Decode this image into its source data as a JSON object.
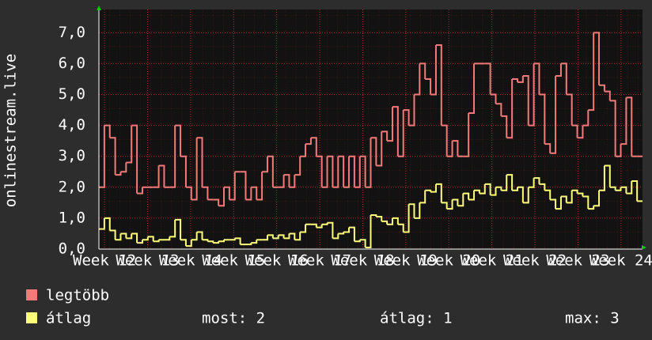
{
  "chart_data": {
    "type": "line",
    "y_label": "onlinestream.live",
    "xlim": [
      11.87,
      24.5
    ],
    "xticks": [
      {
        "value": 12,
        "label": "Week 12"
      },
      {
        "value": 13,
        "label": "Week 13"
      },
      {
        "value": 14,
        "label": "Week 14"
      },
      {
        "value": 15,
        "label": "Week 15"
      },
      {
        "value": 16,
        "label": "Week 16"
      },
      {
        "value": 17,
        "label": "Week 17"
      },
      {
        "value": 18,
        "label": "Week 18"
      },
      {
        "value": 19,
        "label": "Week 19"
      },
      {
        "value": 20,
        "label": "Week 20"
      },
      {
        "value": 21,
        "label": "Week 21"
      },
      {
        "value": 22,
        "label": "Week 22"
      },
      {
        "value": 23,
        "label": "Week 23"
      },
      {
        "value": 24,
        "label": "Week 24"
      }
    ],
    "ylim": [
      0,
      7.75
    ],
    "yticks": [
      {
        "value": 0,
        "label": "0,0"
      },
      {
        "value": 1,
        "label": "1,0"
      },
      {
        "value": 2,
        "label": "2,0"
      },
      {
        "value": 3,
        "label": "3,0"
      },
      {
        "value": 4,
        "label": "4,0"
      },
      {
        "value": 5,
        "label": "5,0"
      },
      {
        "value": 6,
        "label": "6,0"
      },
      {
        "value": 7,
        "label": "7,0"
      }
    ],
    "grid": true,
    "series": [
      {
        "name": "legtöbb",
        "color": "#f47a7a",
        "values": [
          2.0,
          4.0,
          3.6,
          2.4,
          2.5,
          2.8,
          4.0,
          1.8,
          2.0,
          2.0,
          2.0,
          2.7,
          2.0,
          2.0,
          4.0,
          3.0,
          2.0,
          1.6,
          3.6,
          2.0,
          1.6,
          1.6,
          1.4,
          2.0,
          1.6,
          2.5,
          2.5,
          1.6,
          2.0,
          1.6,
          2.5,
          3.0,
          2.0,
          2.0,
          2.4,
          2.0,
          2.4,
          3.0,
          3.4,
          3.6,
          3.0,
          2.0,
          3.0,
          2.0,
          3.0,
          2.0,
          3.0,
          2.0,
          3.0,
          2.0,
          3.6,
          2.7,
          3.8,
          3.5,
          4.6,
          3.0,
          4.5,
          4.0,
          5.0,
          6.0,
          5.5,
          5.0,
          6.6,
          4.0,
          3.0,
          3.5,
          3.0,
          3.0,
          4.4,
          6.0,
          6.0,
          6.0,
          5.0,
          4.7,
          4.3,
          3.6,
          5.5,
          5.4,
          5.6,
          4.0,
          6.0,
          5.0,
          3.4,
          3.1,
          5.6,
          6.0,
          5.0,
          4.0,
          3.6,
          4.0,
          4.5,
          7.0,
          5.3,
          5.1,
          4.8,
          3.0,
          3.4,
          4.9,
          3.0,
          3.0
        ]
      },
      {
        "name": "átlag",
        "color": "#ffff7a",
        "values": [
          0.65,
          1.0,
          0.6,
          0.3,
          0.5,
          0.35,
          0.5,
          0.2,
          0.3,
          0.4,
          0.25,
          0.3,
          0.3,
          0.4,
          0.95,
          0.3,
          0.1,
          0.3,
          0.55,
          0.3,
          0.25,
          0.2,
          0.25,
          0.3,
          0.3,
          0.35,
          0.15,
          0.15,
          0.2,
          0.3,
          0.3,
          0.45,
          0.35,
          0.45,
          0.35,
          0.5,
          0.3,
          0.55,
          0.8,
          0.8,
          0.7,
          0.8,
          0.85,
          0.35,
          0.5,
          0.55,
          0.7,
          0.25,
          0.3,
          0.05,
          1.1,
          1.05,
          0.9,
          0.8,
          1.0,
          0.8,
          0.55,
          1.45,
          1.0,
          1.5,
          1.9,
          1.85,
          2.1,
          1.5,
          1.3,
          1.6,
          1.4,
          1.8,
          1.6,
          1.9,
          1.8,
          2.1,
          1.75,
          2.0,
          1.9,
          2.4,
          1.9,
          2.0,
          1.5,
          2.0,
          2.3,
          2.1,
          1.9,
          1.6,
          1.3,
          1.7,
          1.5,
          1.9,
          1.8,
          1.7,
          1.3,
          1.4,
          1.9,
          2.7,
          2.0,
          1.9,
          2.0,
          1.8,
          2.2,
          1.55
        ]
      }
    ],
    "stats": [
      "most: 2",
      "átlag: 1",
      "max: 3"
    ]
  }
}
